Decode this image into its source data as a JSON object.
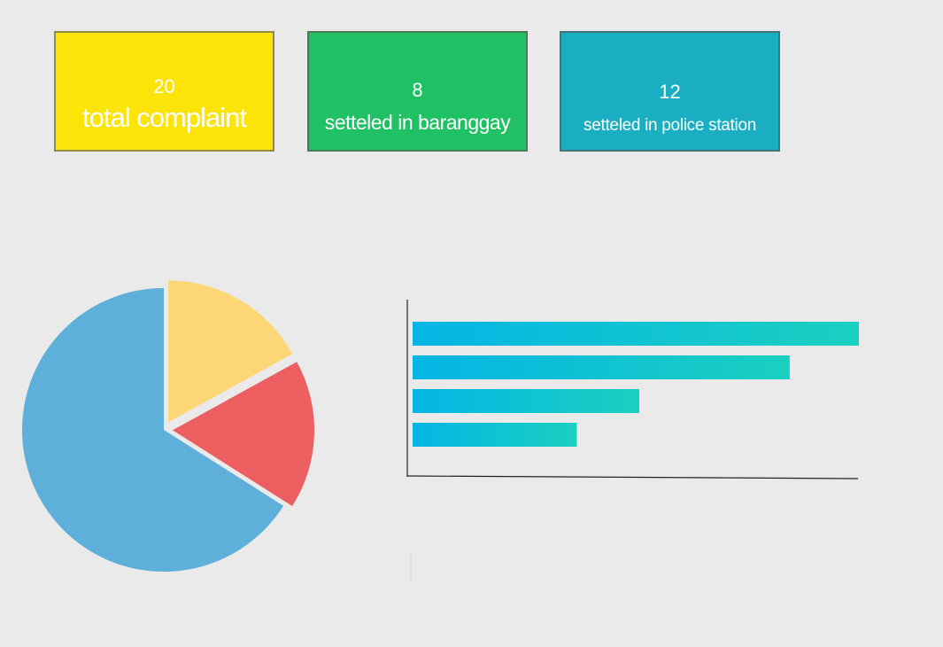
{
  "cards": [
    {
      "value": "20",
      "label": "total complaint",
      "color": "#fce308"
    },
    {
      "value": "8",
      "label": "setteled in baranggay",
      "color": "#20c065"
    },
    {
      "value": "12",
      "label": "setteled in police station",
      "color": "#1aaec2"
    }
  ],
  "chart_data": [
    {
      "type": "pie",
      "slices": [
        {
          "value": 66,
          "color": "#5eafd9"
        },
        {
          "value": 17,
          "color": "#fcd677"
        },
        {
          "value": 17,
          "color": "#ec5e60",
          "exploded": true
        }
      ]
    },
    {
      "type": "bar",
      "orientation": "horizontal",
      "values": [
        100,
        84.5,
        50.8,
        36.8
      ],
      "xlim": [
        0,
        100
      ],
      "gradient": [
        "#05b5e5",
        "#1ad0c0"
      ]
    }
  ]
}
